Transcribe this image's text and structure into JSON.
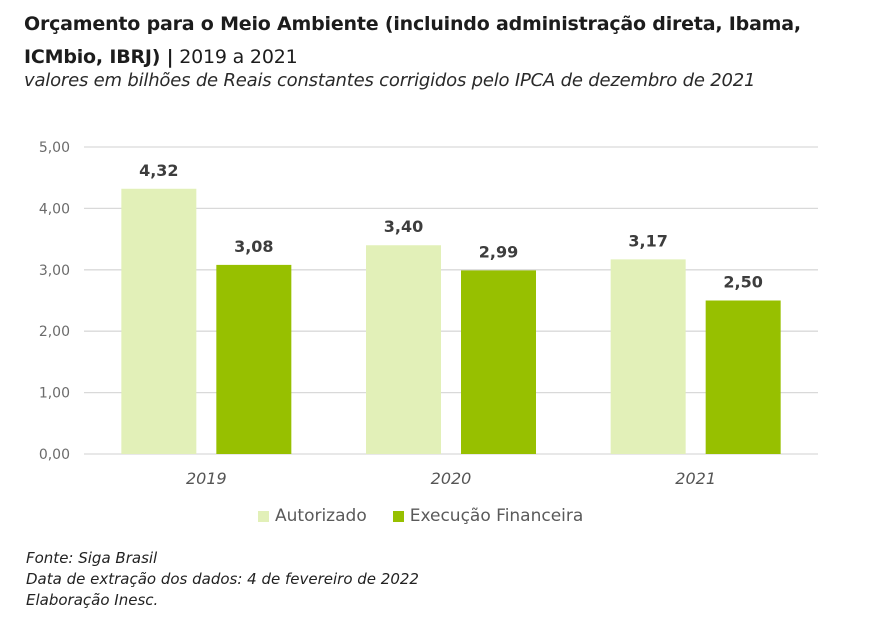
{
  "header": {
    "title_bold": "Orçamento para o Meio Ambiente (incluindo administração direta, Ibama, ICMbio, IBRJ) |",
    "title_years": " 2019 a 2021",
    "subtitle": "valores em bilhões de Reais constantes corrigidos pelo IPCA de dezembro de 2021"
  },
  "chart_data": {
    "type": "bar",
    "title": "Orçamento para o Meio Ambiente (incluindo administração direta, Ibama, ICMbio, IBRJ) | 2019 a 2021",
    "subtitle": "valores em bilhões de Reais constantes corrigidos pelo IPCA de dezembro de 2021",
    "xlabel": "",
    "ylabel": "",
    "categories": [
      "2019",
      "2020",
      "2021"
    ],
    "series": [
      {
        "name": "Autorizado",
        "color": "#e2f0b8",
        "values": [
          4.32,
          3.4,
          3.17
        ],
        "labels": [
          "4,32",
          "3,40",
          "3,17"
        ]
      },
      {
        "name": "Execução Financeira",
        "color": "#97c000",
        "values": [
          3.08,
          2.99,
          2.5
        ],
        "labels": [
          "3,08",
          "2,99",
          "2,50"
        ]
      }
    ],
    "ylim": [
      0,
      5
    ],
    "yticks": [
      0,
      1,
      2,
      3,
      4,
      5
    ],
    "ytick_labels": [
      "0,00",
      "1,00",
      "2,00",
      "3,00",
      "4,00",
      "5,00"
    ],
    "grid": true,
    "legend_position": "bottom"
  },
  "footer": {
    "lines": [
      "Fonte: Siga Brasil",
      "Data de extração dos dados: 4 de fevereiro de 2022",
      "Elaboração Inesc."
    ]
  }
}
